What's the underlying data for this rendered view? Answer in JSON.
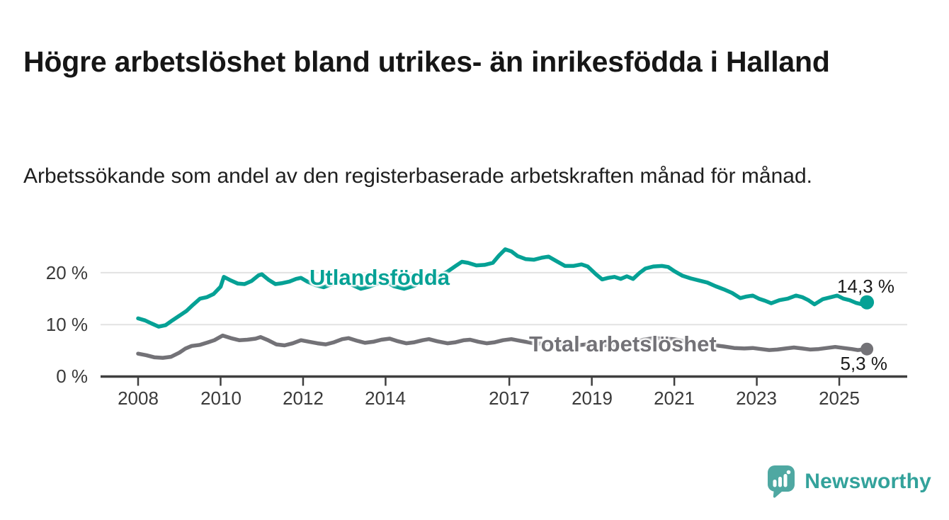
{
  "header": {
    "title": "Högre arbetslöshet bland utrikes- än inrikesfödda i Halland",
    "subtitle": "Arbetssökande som andel av den registerbaserade arbetskraften månad för månad."
  },
  "chart_data": {
    "type": "line",
    "title": "Högre arbetslöshet bland utrikes- än inrikesfödda i Halland",
    "xlabel": "",
    "ylabel": "Arbetssökande som andel av den registerbaserade arbetskraften",
    "grid": true,
    "grid_color": "#e2e2e2",
    "axis_color": "#3f3f3f",
    "ylim": [
      0,
      26
    ],
    "x_range": [
      2008,
      2025.67
    ],
    "y_ticks": [
      {
        "label": "0 %",
        "value": 0
      },
      {
        "label": "10 %",
        "value": 10
      },
      {
        "label": "20 %",
        "value": 20
      }
    ],
    "x_ticks": [
      {
        "label": "2008",
        "year": 2008
      },
      {
        "label": "2010",
        "year": 2010
      },
      {
        "label": "2012",
        "year": 2012
      },
      {
        "label": "2014",
        "year": 2014
      },
      {
        "label": "2017",
        "year": 2017
      },
      {
        "label": "2019",
        "year": 2019
      },
      {
        "label": "2021",
        "year": 2021
      },
      {
        "label": "2023",
        "year": 2023
      },
      {
        "label": "2025",
        "year": 2025
      }
    ],
    "series": [
      {
        "name": "Utlandsfödda",
        "color": "#05a195",
        "end_label": "14,3 %",
        "end_value": 14.3,
        "points": [
          [
            2008.0,
            11.2
          ],
          [
            2008.17,
            10.8
          ],
          [
            2008.33,
            10.2
          ],
          [
            2008.5,
            9.6
          ],
          [
            2008.67,
            9.9
          ],
          [
            2008.83,
            10.8
          ],
          [
            2009.0,
            11.7
          ],
          [
            2009.17,
            12.6
          ],
          [
            2009.33,
            13.8
          ],
          [
            2009.5,
            15.0
          ],
          [
            2009.67,
            15.3
          ],
          [
            2009.83,
            15.9
          ],
          [
            2010.0,
            17.3
          ],
          [
            2010.08,
            19.2
          ],
          [
            2010.25,
            18.5
          ],
          [
            2010.42,
            17.9
          ],
          [
            2010.58,
            17.8
          ],
          [
            2010.75,
            18.4
          ],
          [
            2010.92,
            19.5
          ],
          [
            2011.0,
            19.7
          ],
          [
            2011.17,
            18.6
          ],
          [
            2011.33,
            17.8
          ],
          [
            2011.5,
            18.0
          ],
          [
            2011.67,
            18.3
          ],
          [
            2011.83,
            18.8
          ],
          [
            2011.95,
            19.0
          ],
          [
            2012.1,
            18.3
          ],
          [
            2012.3,
            17.6
          ],
          [
            2012.5,
            17.2
          ],
          [
            2012.7,
            17.8
          ],
          [
            2012.9,
            18.3
          ],
          [
            2013.0,
            18.5
          ],
          [
            2013.2,
            17.6
          ],
          [
            2013.4,
            16.9
          ],
          [
            2013.6,
            17.3
          ],
          [
            2013.8,
            17.9
          ],
          [
            2014.0,
            18.3
          ],
          [
            2014.2,
            17.4
          ],
          [
            2014.45,
            16.9
          ],
          [
            2014.7,
            17.5
          ],
          [
            2014.9,
            18.4
          ],
          [
            2015.1,
            18.9
          ],
          [
            2015.3,
            19.4
          ],
          [
            2015.5,
            20.2
          ],
          [
            2015.7,
            21.3
          ],
          [
            2015.85,
            22.1
          ],
          [
            2016.0,
            21.9
          ],
          [
            2016.2,
            21.4
          ],
          [
            2016.4,
            21.5
          ],
          [
            2016.6,
            21.9
          ],
          [
            2016.75,
            23.3
          ],
          [
            2016.9,
            24.5
          ],
          [
            2017.05,
            24.1
          ],
          [
            2017.2,
            23.2
          ],
          [
            2017.4,
            22.6
          ],
          [
            2017.6,
            22.5
          ],
          [
            2017.8,
            22.9
          ],
          [
            2017.95,
            23.1
          ],
          [
            2018.15,
            22.2
          ],
          [
            2018.35,
            21.3
          ],
          [
            2018.55,
            21.3
          ],
          [
            2018.75,
            21.6
          ],
          [
            2018.9,
            21.2
          ],
          [
            2019.1,
            19.7
          ],
          [
            2019.25,
            18.7
          ],
          [
            2019.4,
            19.0
          ],
          [
            2019.55,
            19.2
          ],
          [
            2019.7,
            18.8
          ],
          [
            2019.85,
            19.3
          ],
          [
            2020.0,
            18.8
          ],
          [
            2020.15,
            19.9
          ],
          [
            2020.3,
            20.8
          ],
          [
            2020.5,
            21.2
          ],
          [
            2020.7,
            21.3
          ],
          [
            2020.85,
            21.1
          ],
          [
            2021.0,
            20.3
          ],
          [
            2021.2,
            19.4
          ],
          [
            2021.4,
            18.9
          ],
          [
            2021.6,
            18.5
          ],
          [
            2021.8,
            18.1
          ],
          [
            2022.0,
            17.4
          ],
          [
            2022.2,
            16.8
          ],
          [
            2022.4,
            16.1
          ],
          [
            2022.6,
            15.1
          ],
          [
            2022.75,
            15.4
          ],
          [
            2022.9,
            15.6
          ],
          [
            2023.05,
            15.0
          ],
          [
            2023.2,
            14.6
          ],
          [
            2023.35,
            14.1
          ],
          [
            2023.55,
            14.7
          ],
          [
            2023.75,
            15.0
          ],
          [
            2023.95,
            15.6
          ],
          [
            2024.1,
            15.3
          ],
          [
            2024.25,
            14.7
          ],
          [
            2024.4,
            13.9
          ],
          [
            2024.6,
            14.9
          ],
          [
            2024.8,
            15.3
          ],
          [
            2024.95,
            15.6
          ],
          [
            2025.1,
            15.0
          ],
          [
            2025.25,
            14.7
          ],
          [
            2025.4,
            14.2
          ],
          [
            2025.55,
            13.9
          ],
          [
            2025.67,
            14.3
          ]
        ]
      },
      {
        "name": "Total arbetslöshet",
        "color": "#737277",
        "end_label": "5,3 %",
        "end_value": 5.3,
        "points": [
          [
            2008.0,
            4.4
          ],
          [
            2008.2,
            4.1
          ],
          [
            2008.4,
            3.7
          ],
          [
            2008.6,
            3.6
          ],
          [
            2008.8,
            3.8
          ],
          [
            2009.0,
            4.6
          ],
          [
            2009.15,
            5.4
          ],
          [
            2009.3,
            5.9
          ],
          [
            2009.5,
            6.1
          ],
          [
            2009.7,
            6.6
          ],
          [
            2009.85,
            7.0
          ],
          [
            2010.05,
            7.9
          ],
          [
            2010.25,
            7.4
          ],
          [
            2010.45,
            7.0
          ],
          [
            2010.65,
            7.1
          ],
          [
            2010.85,
            7.3
          ],
          [
            2010.97,
            7.6
          ],
          [
            2011.15,
            7.0
          ],
          [
            2011.35,
            6.2
          ],
          [
            2011.55,
            6.0
          ],
          [
            2011.75,
            6.4
          ],
          [
            2011.95,
            7.0
          ],
          [
            2012.15,
            6.7
          ],
          [
            2012.35,
            6.4
          ],
          [
            2012.55,
            6.2
          ],
          [
            2012.75,
            6.6
          ],
          [
            2012.95,
            7.2
          ],
          [
            2013.1,
            7.4
          ],
          [
            2013.3,
            6.9
          ],
          [
            2013.5,
            6.5
          ],
          [
            2013.7,
            6.7
          ],
          [
            2013.9,
            7.1
          ],
          [
            2014.1,
            7.3
          ],
          [
            2014.3,
            6.8
          ],
          [
            2014.5,
            6.4
          ],
          [
            2014.7,
            6.6
          ],
          [
            2014.9,
            7.0
          ],
          [
            2015.05,
            7.2
          ],
          [
            2015.25,
            6.8
          ],
          [
            2015.5,
            6.4
          ],
          [
            2015.7,
            6.6
          ],
          [
            2015.9,
            7.0
          ],
          [
            2016.05,
            7.1
          ],
          [
            2016.25,
            6.7
          ],
          [
            2016.45,
            6.4
          ],
          [
            2016.65,
            6.6
          ],
          [
            2016.85,
            7.0
          ],
          [
            2017.05,
            7.2
          ],
          [
            2017.25,
            6.9
          ],
          [
            2017.45,
            6.6
          ],
          [
            2017.65,
            6.3
          ],
          [
            2017.85,
            6.4
          ],
          [
            2018.05,
            6.5
          ],
          [
            2018.3,
            6.1
          ],
          [
            2018.5,
            5.9
          ],
          [
            2018.75,
            6.1
          ],
          [
            2019.0,
            6.3
          ],
          [
            2019.25,
            6.0
          ],
          [
            2019.5,
            6.1
          ],
          [
            2019.75,
            6.3
          ],
          [
            2020.0,
            6.5
          ],
          [
            2020.25,
            7.1
          ],
          [
            2020.5,
            7.4
          ],
          [
            2020.75,
            7.3
          ],
          [
            2021.0,
            7.2
          ],
          [
            2021.25,
            6.8
          ],
          [
            2021.5,
            6.5
          ],
          [
            2021.75,
            6.2
          ],
          [
            2022.0,
            6.0
          ],
          [
            2022.2,
            5.8
          ],
          [
            2022.45,
            5.5
          ],
          [
            2022.7,
            5.4
          ],
          [
            2022.9,
            5.5
          ],
          [
            2023.1,
            5.3
          ],
          [
            2023.3,
            5.1
          ],
          [
            2023.5,
            5.2
          ],
          [
            2023.7,
            5.4
          ],
          [
            2023.9,
            5.6
          ],
          [
            2024.1,
            5.4
          ],
          [
            2024.3,
            5.2
          ],
          [
            2024.5,
            5.3
          ],
          [
            2024.7,
            5.5
          ],
          [
            2024.9,
            5.7
          ],
          [
            2025.1,
            5.5
          ],
          [
            2025.3,
            5.3
          ],
          [
            2025.45,
            5.1
          ],
          [
            2025.67,
            5.3
          ]
        ]
      }
    ]
  },
  "branding": {
    "logo_text": "Newsworthy",
    "logo_icon": "speech-bubble-bar-chart-icon",
    "icon_color": "#4fa8a2",
    "text_color": "#33a29b"
  }
}
